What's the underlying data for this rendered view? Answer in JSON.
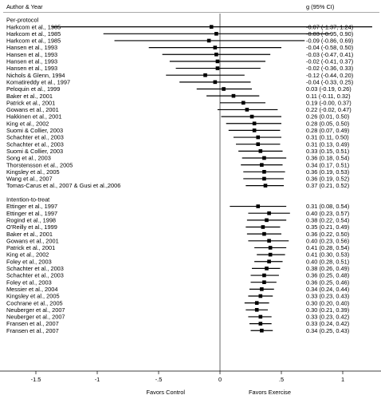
{
  "chart_data": {
    "type": "forest",
    "header_left": "Author & Year",
    "header_right": "g (95% CI)",
    "xlim": [
      -2,
      2
    ],
    "xticks": [
      {
        "value": -1.5,
        "label": "-1.5"
      },
      {
        "value": -1,
        "label": "-1"
      },
      {
        "value": -0.5,
        "label": "-.5"
      },
      {
        "value": 0,
        "label": "0"
      },
      {
        "value": 0.5,
        "label": ".5"
      },
      {
        "value": 1,
        "label": "1"
      },
      {
        "value": 1.5,
        "label": "1.5"
      }
    ],
    "x_caption_left": "Favors Control",
    "x_caption_right": "Favors Exercise",
    "groups": [
      {
        "name": "Per-protocol",
        "studies": [
          {
            "label": "Harkcom et al., 1985",
            "g": -0.07,
            "lo": -1.37,
            "hi": 1.24,
            "ci_text": "-0.07 (-1.37, 1.24)"
          },
          {
            "label": "Harkcom et al., 1985",
            "g": -0.03,
            "lo": -0.95,
            "hi": 0.9,
            "ci_text": "-0.03 (-0.95, 0.90)"
          },
          {
            "label": "Harkcom et al., 1985",
            "g": -0.09,
            "lo": -0.86,
            "hi": 0.69,
            "ci_text": "-0.09 (-0.86, 0.69)"
          },
          {
            "label": "Hansen et al., 1993",
            "g": -0.04,
            "lo": -0.58,
            "hi": 0.5,
            "ci_text": "-0.04 (-0.58, 0.50)"
          },
          {
            "label": "Hansen et al., 1993",
            "g": -0.03,
            "lo": -0.47,
            "hi": 0.41,
            "ci_text": "-0.03 (-0.47, 0.41)"
          },
          {
            "label": "Hansen et al., 1993",
            "g": -0.02,
            "lo": -0.41,
            "hi": 0.37,
            "ci_text": "-0.02 (-0.41, 0.37)"
          },
          {
            "label": "Hansen et al., 1993",
            "g": -0.02,
            "lo": -0.36,
            "hi": 0.33,
            "ci_text": "-0.02 (-0.36, 0.33)"
          },
          {
            "label": "Nichols & Glenn, 1994",
            "g": -0.12,
            "lo": -0.44,
            "hi": 0.2,
            "ci_text": "-0.12 (-0.44, 0.20)"
          },
          {
            "label": "Komatireddy et al., 1997",
            "g": -0.04,
            "lo": -0.33,
            "hi": 0.25,
            "ci_text": "-0.04 (-0.33, 0.25)"
          },
          {
            "label": "Peloquin et al., 1999",
            "g": 0.03,
            "lo": -0.19,
            "hi": 0.26,
            "ci_text": "0.03 (-0.19, 0.26)"
          },
          {
            "label": "Baker et al., 2001",
            "g": 0.11,
            "lo": -0.11,
            "hi": 0.32,
            "ci_text": "0.11 (-0.11, 0.32)"
          },
          {
            "label": "Patrick et al., 2001",
            "g": 0.19,
            "lo": 0.0,
            "hi": 0.37,
            "ci_text": "0.19 (-0.00, 0.37)"
          },
          {
            "label": "Gowans et al., 2001",
            "g": 0.22,
            "lo": -0.02,
            "hi": 0.47,
            "ci_text": "0.22 (-0.02, 0.47)"
          },
          {
            "label": "Hakkinen et al., 2001",
            "g": 0.26,
            "lo": 0.01,
            "hi": 0.5,
            "ci_text": "0.26 (0.01, 0.50)"
          },
          {
            "label": "King et al., 2002",
            "g": 0.28,
            "lo": 0.05,
            "hi": 0.5,
            "ci_text": "0.28 (0.05, 0.50)"
          },
          {
            "label": "Suomi & Collier, 2003",
            "g": 0.28,
            "lo": 0.07,
            "hi": 0.49,
            "ci_text": "0.28 (0.07, 0.49)"
          },
          {
            "label": "Schachter et al., 2003",
            "g": 0.31,
            "lo": 0.11,
            "hi": 0.5,
            "ci_text": "0.31 (0.11, 0.50)"
          },
          {
            "label": "Schachter et al., 2003",
            "g": 0.31,
            "lo": 0.13,
            "hi": 0.49,
            "ci_text": "0.31 (0.13, 0.49)"
          },
          {
            "label": "Suomi & Collier, 2003",
            "g": 0.33,
            "lo": 0.15,
            "hi": 0.51,
            "ci_text": "0.33 (0.15, 0.51)"
          },
          {
            "label": "Song et al., 2003",
            "g": 0.36,
            "lo": 0.18,
            "hi": 0.54,
            "ci_text": "0.36 (0.18, 0.54)"
          },
          {
            "label": "Thorstensson et al., 2005",
            "g": 0.34,
            "lo": 0.17,
            "hi": 0.51,
            "ci_text": "0.34 (0.17, 0.51)"
          },
          {
            "label": "Kingsley et al., 2005",
            "g": 0.36,
            "lo": 0.19,
            "hi": 0.53,
            "ci_text": "0.36 (0.19, 0.53)"
          },
          {
            "label": "Wang et al., 2007",
            "g": 0.36,
            "lo": 0.19,
            "hi": 0.52,
            "ci_text": "0.36 (0.19, 0.52)"
          },
          {
            "label": "Tomas-Carus et al., 2007 & Gusi et al.,2006",
            "g": 0.37,
            "lo": 0.21,
            "hi": 0.52,
            "ci_text": "0.37 (0.21, 0.52)"
          }
        ]
      },
      {
        "name": "Intention-to-treat",
        "studies": [
          {
            "label": "Ettinger et al., 1997",
            "g": 0.31,
            "lo": 0.08,
            "hi": 0.54,
            "ci_text": "0.31 (0.08, 0.54)"
          },
          {
            "label": "Ettinger et al., 1997",
            "g": 0.4,
            "lo": 0.23,
            "hi": 0.57,
            "ci_text": "0.40 (0.23, 0.57)"
          },
          {
            "label": "Rogind et al., 1998",
            "g": 0.38,
            "lo": 0.22,
            "hi": 0.54,
            "ci_text": "0.38 (0.22, 0.54)"
          },
          {
            "label": "O'Reilly et al., 1999",
            "g": 0.35,
            "lo": 0.21,
            "hi": 0.49,
            "ci_text": "0.35 (0.21, 0.49)"
          },
          {
            "label": "Baker et al., 2001",
            "g": 0.36,
            "lo": 0.22,
            "hi": 0.5,
            "ci_text": "0.36 (0.22, 0.50)"
          },
          {
            "label": "Gowans et al., 2001",
            "g": 0.4,
            "lo": 0.23,
            "hi": 0.56,
            "ci_text": "0.40 (0.23, 0.56)"
          },
          {
            "label": "Patrick et al., 2001",
            "g": 0.41,
            "lo": 0.28,
            "hi": 0.54,
            "ci_text": "0.41 (0.28, 0.54)"
          },
          {
            "label": "King et al., 2002",
            "g": 0.41,
            "lo": 0.3,
            "hi": 0.53,
            "ci_text": "0.41 (0.30, 0.53)"
          },
          {
            "label": "Foley et al., 2003",
            "g": 0.4,
            "lo": 0.28,
            "hi": 0.51,
            "ci_text": "0.40 (0.28, 0.51)"
          },
          {
            "label": "Schachter et al., 2003",
            "g": 0.38,
            "lo": 0.26,
            "hi": 0.49,
            "ci_text": "0.38 (0.26, 0.49)"
          },
          {
            "label": "Schachter et al., 2003",
            "g": 0.36,
            "lo": 0.25,
            "hi": 0.48,
            "ci_text": "0.36 (0.25, 0.48)"
          },
          {
            "label": "Foley et al., 2003",
            "g": 0.36,
            "lo": 0.25,
            "hi": 0.46,
            "ci_text": "0.36 (0.25, 0.46)"
          },
          {
            "label": "Messier et al., 2004",
            "g": 0.34,
            "lo": 0.24,
            "hi": 0.44,
            "ci_text": "0.34 (0.24, 0.44)"
          },
          {
            "label": "Kingsley et al., 2005",
            "g": 0.33,
            "lo": 0.23,
            "hi": 0.43,
            "ci_text": "0.33 (0.23, 0.43)"
          },
          {
            "label": "Cochrane et al., 2005",
            "g": 0.3,
            "lo": 0.2,
            "hi": 0.4,
            "ci_text": "0.30 (0.20, 0.40)"
          },
          {
            "label": "Neuberger et al., 2007",
            "g": 0.3,
            "lo": 0.21,
            "hi": 0.39,
            "ci_text": "0.30 (0.21, 0.39)"
          },
          {
            "label": "Neuberger et al., 2007",
            "g": 0.33,
            "lo": 0.23,
            "hi": 0.42,
            "ci_text": "0.33 (0.23, 0.42)"
          },
          {
            "label": "Fransen et al., 2007",
            "g": 0.33,
            "lo": 0.24,
            "hi": 0.42,
            "ci_text": "0.33 (0.24, 0.42)"
          },
          {
            "label": "Fransen et al., 2007",
            "g": 0.34,
            "lo": 0.25,
            "hi": 0.43,
            "ci_text": "0.34 (0.25, 0.43)"
          }
        ]
      }
    ]
  }
}
